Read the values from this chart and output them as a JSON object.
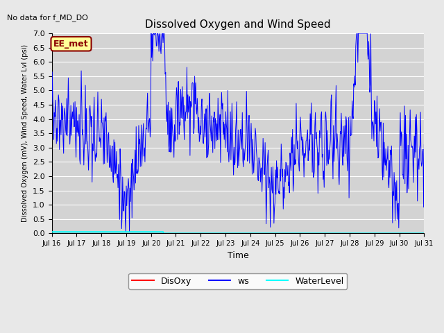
{
  "title": "Dissolved Oxygen and Wind Speed",
  "top_left_text": "No data for f_MD_DO",
  "legend_box_text": "EE_met",
  "xlabel": "Time",
  "ylabel": "Dissolved Oxygen (mV), Wind Speed, Water Lvl (psi)",
  "ylim": [
    0.0,
    7.0
  ],
  "yticks": [
    0.0,
    0.5,
    1.0,
    1.5,
    2.0,
    2.5,
    3.0,
    3.5,
    4.0,
    4.5,
    5.0,
    5.5,
    6.0,
    6.5,
    7.0
  ],
  "bg_color": "#e8e8e8",
  "plot_bg_color": "#d3d3d3",
  "grid_color": "#ffffff",
  "ws_color": "#0000ff",
  "disoxy_color": "#ff0000",
  "wl_color": "#00ffff",
  "legend_entries": [
    "DisOxy",
    "ws",
    "WaterLevel"
  ],
  "legend_colors": [
    "#ff0000",
    "#0000ff",
    "#00ffff"
  ],
  "xtick_labels": [
    "Jul 16",
    "Jul 17",
    "Jul 18",
    "Jul 19",
    "Jul 20",
    "Jul 21",
    "Jul 22",
    "Jul 23",
    "Jul 24",
    "Jul 25",
    "Jul 26",
    "Jul 27",
    "Jul 28",
    "Jul 29",
    "Jul 30",
    "Jul 31"
  ]
}
